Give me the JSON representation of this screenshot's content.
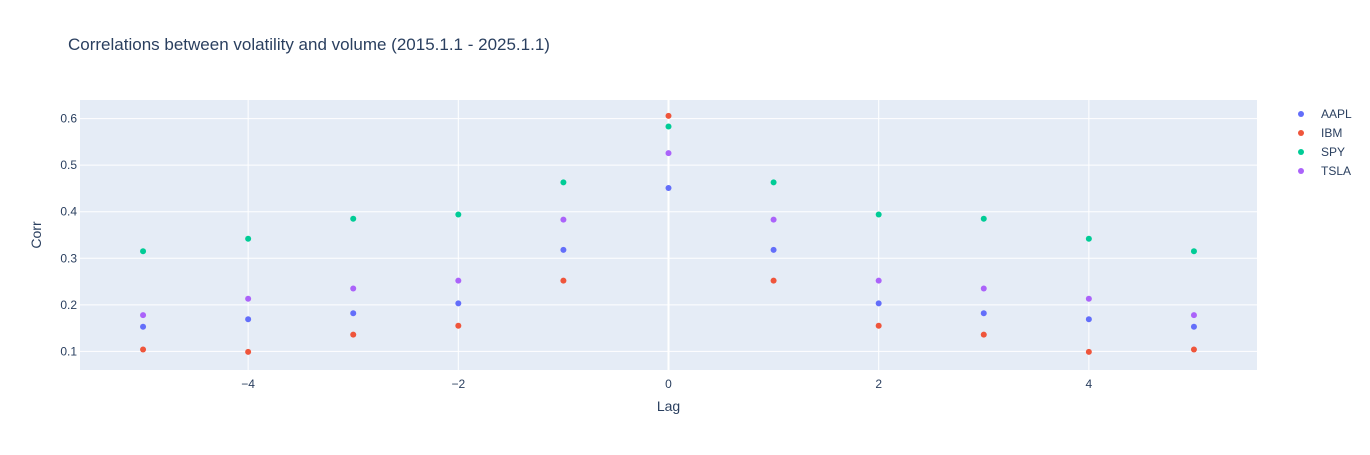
{
  "chart_data": {
    "type": "scatter",
    "title": "Correlations between volatility and volume (2015.1.1 - 2025.1.1)",
    "xlabel": "Lag",
    "ylabel": "Corr",
    "xlim": [
      -5.6,
      5.6
    ],
    "ylim": [
      0.06,
      0.64
    ],
    "x_ticks": [
      -4,
      -2,
      0,
      2,
      4
    ],
    "x_tick_labels": [
      "−4",
      "−2",
      "0",
      "2",
      "4"
    ],
    "y_ticks": [
      0.1,
      0.2,
      0.3,
      0.4,
      0.5,
      0.6
    ],
    "y_tick_labels": [
      "0.1",
      "0.2",
      "0.3",
      "0.4",
      "0.5",
      "0.6"
    ],
    "grid": true,
    "legend_position": "top-right",
    "x": [
      -5,
      -4,
      -3,
      -2,
      -1,
      0,
      1,
      2,
      3,
      4,
      5
    ],
    "series": [
      {
        "name": "AAPL",
        "color": "#636efa",
        "values": [
          0.153,
          0.169,
          0.182,
          0.203,
          0.318,
          0.451,
          0.318,
          0.203,
          0.182,
          0.169,
          0.153
        ]
      },
      {
        "name": "IBM",
        "color": "#ef553b",
        "values": [
          0.104,
          0.099,
          0.136,
          0.155,
          0.252,
          0.606,
          0.252,
          0.155,
          0.136,
          0.099,
          0.104
        ]
      },
      {
        "name": "SPY",
        "color": "#00cc96",
        "values": [
          0.315,
          0.342,
          0.385,
          0.394,
          0.463,
          0.583,
          0.463,
          0.394,
          0.385,
          0.342,
          0.315
        ]
      },
      {
        "name": "TSLA",
        "color": "#ab63fa",
        "values": [
          0.178,
          0.213,
          0.235,
          0.252,
          0.383,
          0.526,
          0.383,
          0.252,
          0.235,
          0.213,
          0.178
        ]
      }
    ]
  },
  "colors": {
    "plot_background": "#e5ecf6",
    "grid": "#ffffff",
    "text": "#2a3f5f"
  }
}
